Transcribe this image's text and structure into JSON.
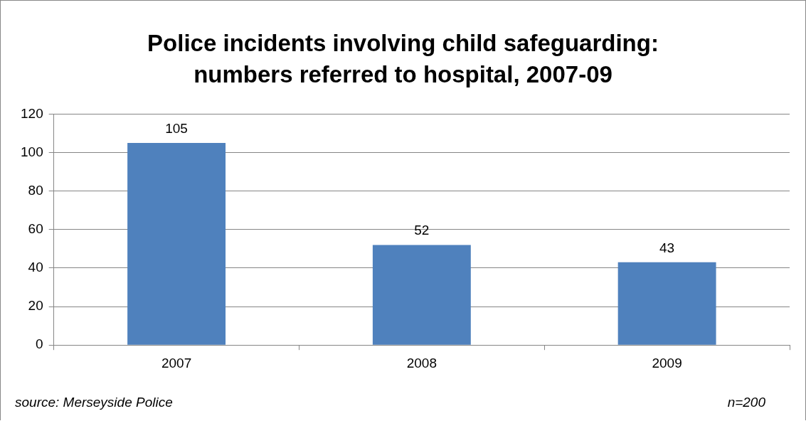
{
  "chart_data": {
    "type": "bar",
    "title": "Police incidents involving child safeguarding: numbers referred to hospital, 2007-09",
    "categories": [
      "2007",
      "2008",
      "2009"
    ],
    "values": [
      105,
      52,
      43
    ],
    "color": "#4f81bd",
    "ylim": [
      0,
      120
    ],
    "yticks": [
      0,
      20,
      40,
      60,
      80,
      100,
      120
    ],
    "grid": "y",
    "legend": false,
    "data_labels": true,
    "annotations": [
      "source: Merseyside Police",
      "n=200"
    ]
  }
}
